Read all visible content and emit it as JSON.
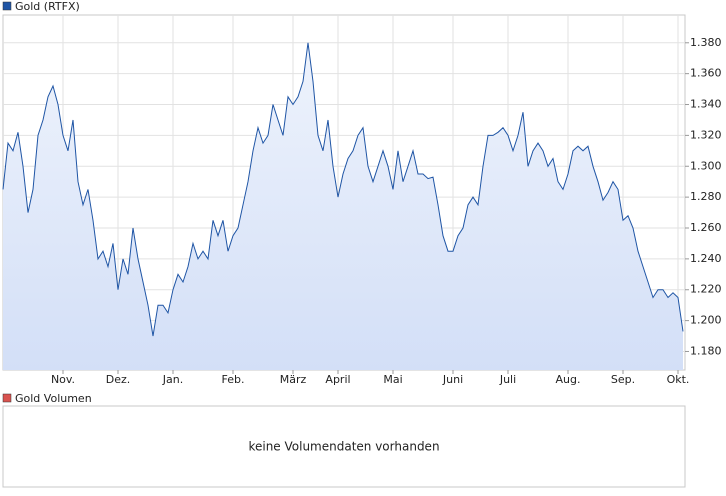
{
  "chart_data": {
    "type": "area",
    "categories": [
      null,
      null,
      null,
      null,
      null,
      null,
      null,
      null,
      null,
      null,
      null,
      null,
      "Nov.",
      null,
      null,
      null,
      null,
      null,
      null,
      null,
      null,
      null,
      null,
      "Dez.",
      null,
      null,
      null,
      null,
      null,
      null,
      null,
      null,
      null,
      null,
      "Jan.",
      null,
      null,
      null,
      null,
      null,
      null,
      null,
      null,
      null,
      null,
      null,
      "Feb.",
      null,
      null,
      null,
      null,
      null,
      null,
      null,
      null,
      null,
      null,
      null,
      "März",
      null,
      null,
      null,
      null,
      null,
      null,
      null,
      null,
      "April",
      null,
      null,
      null,
      null,
      null,
      null,
      null,
      null,
      null,
      null,
      "Mai",
      null,
      null,
      null,
      null,
      null,
      null,
      null,
      null,
      null,
      null,
      null,
      "Juni",
      null,
      null,
      null,
      null,
      null,
      null,
      null,
      null,
      null,
      null,
      "Juli",
      null,
      null,
      null,
      null,
      null,
      null,
      null,
      null,
      null,
      null,
      null,
      "Aug.",
      null,
      null,
      null,
      null,
      null,
      null,
      null,
      null,
      null,
      null,
      "Sep.",
      null,
      null,
      null,
      null,
      null,
      null,
      null,
      null,
      null,
      null,
      "Okt.",
      null
    ],
    "series": [
      {
        "name": "Gold (RTFX)",
        "color": "#1f55a5",
        "values": [
          1.285,
          1.315,
          1.31,
          1.322,
          1.3,
          1.27,
          1.285,
          1.32,
          1.33,
          1.345,
          1.352,
          1.34,
          1.32,
          1.31,
          1.33,
          1.29,
          1.275,
          1.285,
          1.265,
          1.24,
          1.245,
          1.235,
          1.25,
          1.22,
          1.24,
          1.23,
          1.26,
          1.24,
          1.225,
          1.21,
          1.19,
          1.21,
          1.21,
          1.205,
          1.22,
          1.23,
          1.225,
          1.235,
          1.25,
          1.24,
          1.245,
          1.24,
          1.265,
          1.255,
          1.265,
          1.245,
          1.255,
          1.26,
          1.275,
          1.29,
          1.31,
          1.325,
          1.315,
          1.32,
          1.34,
          1.33,
          1.32,
          1.345,
          1.34,
          1.345,
          1.355,
          1.38,
          1.355,
          1.32,
          1.31,
          1.33,
          1.3,
          1.28,
          1.295,
          1.305,
          1.31,
          1.32,
          1.325,
          1.3,
          1.29,
          1.3,
          1.31,
          1.3,
          1.285,
          1.31,
          1.29,
          1.3,
          1.31,
          1.295,
          1.295,
          1.292,
          1.293,
          1.275,
          1.255,
          1.245,
          1.245,
          1.255,
          1.26,
          1.275,
          1.28,
          1.275,
          1.3,
          1.32,
          1.32,
          1.322,
          1.325,
          1.32,
          1.31,
          1.32,
          1.335,
          1.3,
          1.31,
          1.315,
          1.31,
          1.3,
          1.305,
          1.29,
          1.285,
          1.295,
          1.31,
          1.313,
          1.31,
          1.313,
          1.3,
          1.29,
          1.278,
          1.283,
          1.29,
          1.285,
          1.265,
          1.268,
          1.26,
          1.245,
          1.235,
          1.225,
          1.215,
          1.22,
          1.22,
          1.215,
          1.218,
          1.215,
          1.193
        ]
      }
    ],
    "ylim": [
      1.168,
      1.398
    ],
    "yticks": [
      {
        "value": 1.18,
        "label": "1.180"
      },
      {
        "value": 1.2,
        "label": "1.200"
      },
      {
        "value": 1.22,
        "label": "1.220"
      },
      {
        "value": 1.24,
        "label": "1.240"
      },
      {
        "value": 1.26,
        "label": "1.260"
      },
      {
        "value": 1.28,
        "label": "1.280"
      },
      {
        "value": 1.3,
        "label": "1.300"
      },
      {
        "value": 1.32,
        "label": "1.320"
      },
      {
        "value": 1.34,
        "label": "1.340"
      },
      {
        "value": 1.36,
        "label": "1.360"
      },
      {
        "value": 1.38,
        "label": "1.380"
      }
    ],
    "grid": true
  },
  "volume_panel": {
    "legend": "Gold Volumen",
    "color": "#d9534f",
    "message": "keine Volumendaten vorhanden"
  }
}
